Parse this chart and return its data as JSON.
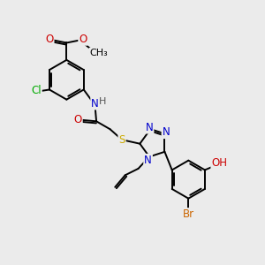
{
  "bg_color": "#ebebeb",
  "atom_colors": {
    "C": "#000000",
    "N": "#0000cc",
    "O": "#cc0000",
    "S": "#ccaa00",
    "Cl": "#00aa00",
    "Br": "#cc6600",
    "H": "#000000"
  },
  "bond_color": "#000000",
  "bond_width": 1.4,
  "font_size": 8.5,
  "fig_size": [
    3.0,
    3.0
  ],
  "dpi": 100
}
